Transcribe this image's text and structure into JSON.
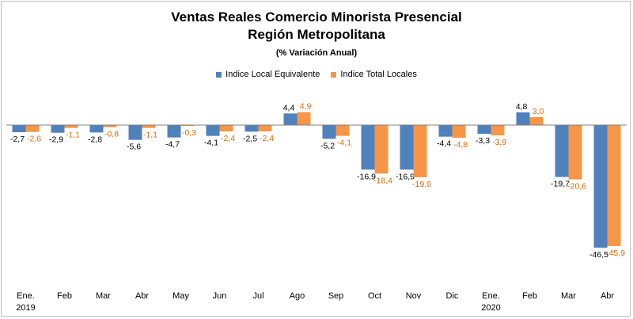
{
  "chart_data": {
    "type": "bar",
    "title": "Ventas Reales Comercio Minorista Presencial",
    "title_line2": "Región Metropolitana",
    "subtitle": "(% Variación Anual)",
    "categories": [
      "Ene.",
      "Feb",
      "Mar",
      "Abr",
      "May",
      "Jun",
      "Jul",
      "Ago",
      "Sep",
      "Oct",
      "Nov",
      "Dic",
      "Ene.",
      "Feb",
      "Mar",
      "Abr"
    ],
    "category_year_labels": [
      "2019",
      "",
      "",
      "",
      "",
      "",
      "",
      "",
      "",
      "",
      "",
      "",
      "2020",
      "",
      "",
      ""
    ],
    "series": [
      {
        "name": "Indice Local Equivalente",
        "color": "#4f81bd",
        "values": [
          -2.7,
          -2.9,
          -2.8,
          -5.6,
          -4.7,
          -4.1,
          -2.5,
          4.4,
          -5.2,
          -16.9,
          -16.9,
          -4.4,
          -3.3,
          4.8,
          -19.7,
          -46.5
        ],
        "labels": [
          "-2,7",
          "-2,9",
          "-2,8",
          "-5,6",
          "-4,7",
          "-4,1",
          "-2,5",
          "4,4",
          "-5,2",
          "-16,9",
          "-16,9",
          "-4,4",
          "-3,3",
          "4,8",
          "-19,7",
          "-46,5"
        ]
      },
      {
        "name": "Indice Total Locales",
        "color": "#f79646",
        "values": [
          -2.6,
          -1.1,
          -0.8,
          -1.1,
          -0.3,
          -2.4,
          -2.4,
          4.9,
          -4.1,
          -18.4,
          -19.8,
          -4.8,
          -3.9,
          3.0,
          -20.6,
          -45.9
        ],
        "labels": [
          "-2,6",
          "-1,1",
          "-0,8",
          "-1,1",
          "-0,3",
          "-2,4",
          "-2,4",
          "4,9",
          "-4,1",
          "-18,4",
          "-19,8",
          "-4,8",
          "-3,9",
          "3,0",
          "-20,6",
          "-45,9"
        ]
      }
    ],
    "legend_position": "top",
    "grid": false,
    "ylim": [
      -47,
      6
    ]
  }
}
